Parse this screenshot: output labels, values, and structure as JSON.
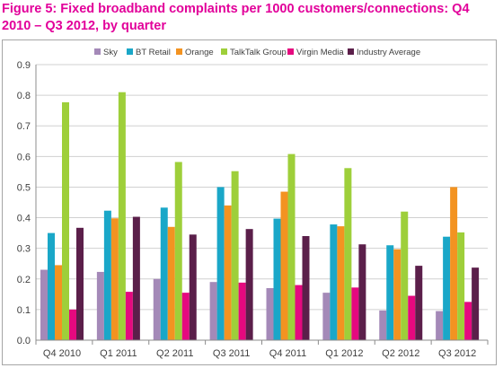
{
  "title": "Figure 5: Fixed broadband complaints per 1000 customers/connections: Q4 2010 – Q3 2012, by quarter",
  "chart_data": {
    "type": "bar",
    "categories": [
      "Q4 2010",
      "Q1 2011",
      "Q2 2011",
      "Q3 2011",
      "Q4 2011",
      "Q1 2012",
      "Q2 2012",
      "Q3 2012"
    ],
    "series": [
      {
        "name": "Sky",
        "color": "#a489b8",
        "values": [
          0.23,
          0.223,
          0.2,
          0.19,
          0.17,
          0.155,
          0.097,
          0.095
        ]
      },
      {
        "name": "BT Retail",
        "color": "#1aa7c8",
        "values": [
          0.35,
          0.423,
          0.433,
          0.5,
          0.397,
          0.378,
          0.31,
          0.338
        ]
      },
      {
        "name": "Orange",
        "color": "#f39321",
        "values": [
          0.245,
          0.398,
          0.37,
          0.44,
          0.485,
          0.372,
          0.297,
          0.5
        ]
      },
      {
        "name": "TalkTalk Group",
        "color": "#9ecf3a",
        "values": [
          0.777,
          0.81,
          0.582,
          0.552,
          0.608,
          0.562,
          0.42,
          0.352
        ]
      },
      {
        "name": "Virgin Media",
        "color": "#e5097f",
        "values": [
          0.1,
          0.158,
          0.155,
          0.188,
          0.18,
          0.172,
          0.145,
          0.125
        ]
      },
      {
        "name": "Industry Average",
        "color": "#5b1f4a",
        "values": [
          0.367,
          0.403,
          0.345,
          0.363,
          0.34,
          0.313,
          0.243,
          0.237
        ]
      }
    ],
    "ylim": [
      0,
      0.9
    ],
    "yticks": [
      "0.0",
      "0.1",
      "0.2",
      "0.3",
      "0.4",
      "0.5",
      "0.6",
      "0.7",
      "0.8",
      "0.9"
    ],
    "grid": true,
    "legend": "top"
  }
}
